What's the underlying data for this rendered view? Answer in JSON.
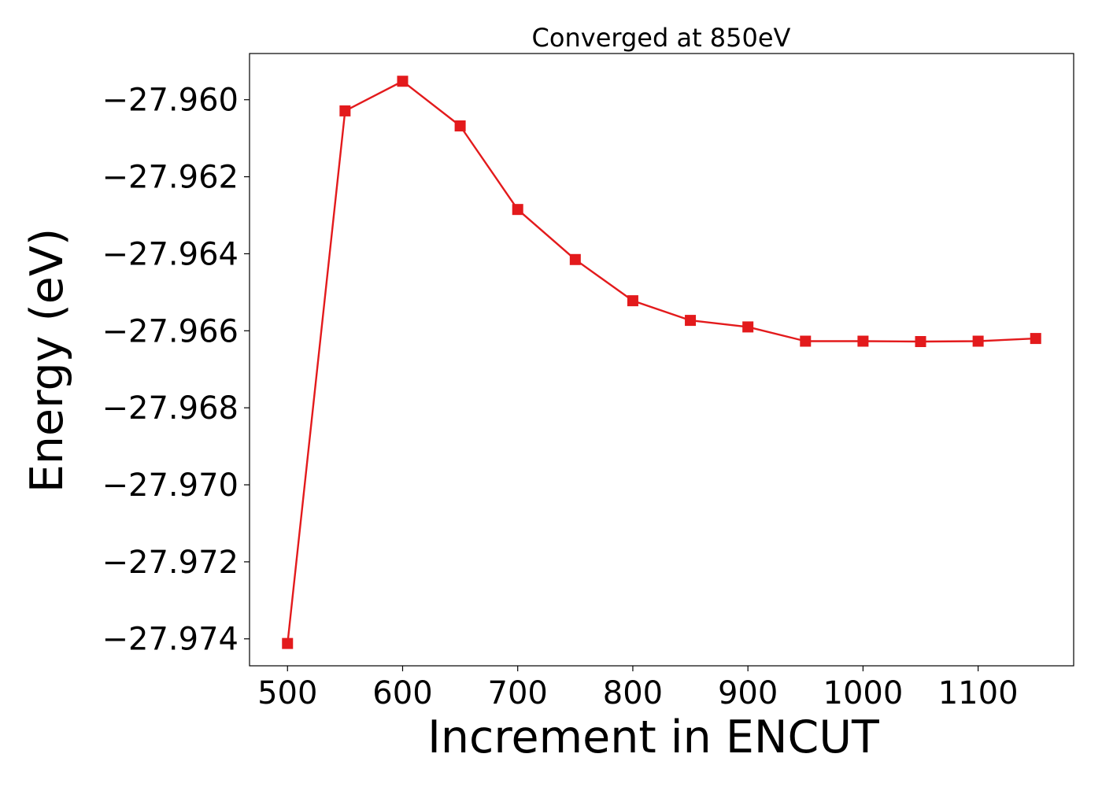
{
  "chart_data": {
    "type": "line",
    "title": "Converged at 850eV",
    "xlabel": "Increment in ENCUT",
    "ylabel": "Energy (eV)",
    "xlim": [
      467,
      1183
    ],
    "ylim": [
      -27.9747,
      -27.9588
    ],
    "x_ticks": [
      500,
      600,
      700,
      800,
      900,
      1000,
      1100
    ],
    "x_tick_labels": [
      "500",
      "600",
      "700",
      "800",
      "900",
      "1000",
      "1100"
    ],
    "y_ticks": [
      -27.974,
      -27.972,
      -27.97,
      -27.968,
      -27.966,
      -27.964,
      -27.962,
      -27.96
    ],
    "y_tick_labels": [
      "−27.974",
      "−27.972",
      "−27.970",
      "−27.968",
      "−27.966",
      "−27.964",
      "−27.962",
      "−27.960"
    ],
    "grid": false,
    "series": [
      {
        "color": "#e31a1c",
        "marker": "square",
        "x": [
          500,
          550,
          600,
          650,
          700,
          750,
          800,
          850,
          900,
          950,
          1000,
          1050,
          1100,
          1150
        ],
        "y": [
          -27.97412,
          -27.96029,
          -27.95952,
          -27.96068,
          -27.96285,
          -27.96415,
          -27.96522,
          -27.96573,
          -27.9659,
          -27.96627,
          -27.96627,
          -27.96628,
          -27.96627,
          -27.9662
        ]
      }
    ]
  }
}
